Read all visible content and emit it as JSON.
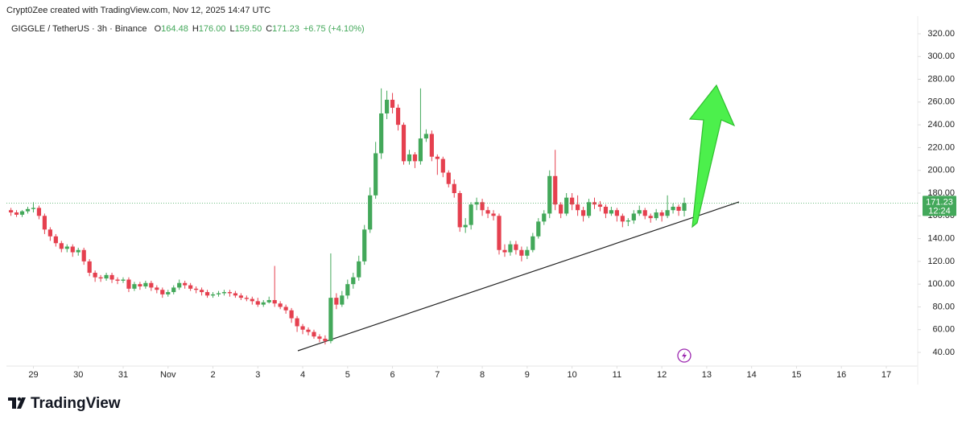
{
  "attribution": "Crypt0Zee created with TradingView.com, Nov 12, 2025 14:47 UTC",
  "branding": "TradingView",
  "chart_data": {
    "type": "candlestick",
    "title": "GIGGLE / TetherUS · 3h · Binance",
    "ohlc_legend": [
      {
        "key": "O",
        "value": "164.48"
      },
      {
        "key": "H",
        "value": "176.00"
      },
      {
        "key": "L",
        "value": "159.50"
      },
      {
        "key": "C",
        "value": "171.23"
      }
    ],
    "change": "+6.75 (+4.10%)",
    "countdown": "12:24",
    "up_color": "#43a85a",
    "down_color": "#e5404f",
    "grid": false,
    "x": [
      -0.5,
      -0.375,
      -0.25,
      -0.125,
      0,
      0.125,
      0.25,
      0.375,
      0.5,
      0.625,
      0.75,
      0.875,
      1,
      1.125,
      1.25,
      1.375,
      1.5,
      1.625,
      1.75,
      1.875,
      2,
      2.125,
      2.25,
      2.375,
      2.5,
      2.625,
      2.75,
      2.875,
      3,
      3.125,
      3.25,
      3.375,
      3.5,
      3.625,
      3.75,
      3.875,
      4,
      4.125,
      4.25,
      4.375,
      4.5,
      4.625,
      4.75,
      4.875,
      5,
      5.125,
      5.25,
      5.375,
      5.5,
      5.625,
      5.75,
      5.875,
      6,
      6.125,
      6.25,
      6.375,
      6.5,
      6.625,
      6.75,
      6.875,
      7,
      7.125,
      7.25,
      7.375,
      7.5,
      7.625,
      7.75,
      7.875,
      8,
      8.125,
      8.25,
      8.375,
      8.5,
      8.625,
      8.75,
      8.875,
      9,
      9.125,
      9.25,
      9.375,
      9.5,
      9.625,
      9.75,
      9.875,
      10,
      10.125,
      10.25,
      10.375,
      10.5,
      10.625,
      10.75,
      10.875,
      11,
      11.125,
      11.25,
      11.375,
      11.5,
      11.625,
      11.75,
      11.875,
      12,
      12.125,
      12.25,
      12.375,
      12.5,
      12.625,
      12.75,
      12.875,
      13,
      13.125,
      13.25,
      13.375,
      13.5,
      13.625,
      13.75,
      13.875,
      14,
      14.125,
      14.25,
      14.375,
      14.5
    ],
    "open": [
      165,
      163,
      161,
      164,
      166,
      167,
      160,
      148,
      142,
      136,
      131,
      133,
      128,
      130,
      120,
      110,
      106,
      105,
      108,
      104,
      103,
      104,
      96,
      100,
      98,
      101,
      97,
      95,
      91,
      93,
      97,
      101,
      99,
      96,
      95,
      93,
      90,
      91,
      92,
      93,
      92,
      90,
      88,
      87,
      85,
      82,
      84,
      86,
      83,
      80,
      77,
      70,
      63,
      60,
      58,
      54,
      52,
      50,
      88,
      82,
      90,
      100,
      106,
      120,
      148,
      178,
      215,
      250,
      262,
      255,
      240,
      208,
      214,
      208,
      228,
      232,
      212,
      210,
      198,
      188,
      180,
      150,
      152,
      170,
      172,
      165,
      162,
      160,
      130,
      128,
      135,
      130,
      125,
      130,
      142,
      155,
      162,
      195,
      170,
      162,
      176,
      170,
      165,
      160,
      172,
      170,
      168,
      162,
      165,
      160,
      155,
      156,
      162,
      165,
      160,
      158,
      163,
      160,
      165,
      168,
      164.48
    ],
    "high": [
      167,
      165,
      165,
      168,
      172,
      169,
      162,
      150,
      144,
      138,
      135,
      135,
      132,
      132,
      122,
      112,
      108,
      110,
      110,
      106,
      106,
      106,
      102,
      102,
      103,
      103,
      99,
      97,
      95,
      99,
      104,
      103,
      101,
      98,
      97,
      95,
      93,
      94,
      95,
      95,
      94,
      92,
      90,
      89,
      88,
      86,
      89,
      116,
      85,
      82,
      79,
      72,
      65,
      62,
      60,
      56,
      55,
      127,
      92,
      94,
      104,
      110,
      125,
      152,
      185,
      225,
      272,
      270,
      268,
      258,
      242,
      218,
      216,
      272,
      236,
      235,
      214,
      212,
      200,
      192,
      182,
      158,
      172,
      176,
      175,
      168,
      165,
      162,
      135,
      138,
      138,
      133,
      133,
      145,
      158,
      165,
      200,
      218,
      172,
      180,
      180,
      178,
      168,
      175,
      176,
      173,
      170,
      168,
      167,
      162,
      158,
      165,
      169,
      167,
      162,
      166,
      165,
      178,
      171,
      170,
      176
    ],
    "low": [
      160,
      159,
      159,
      162,
      163,
      157,
      144,
      138,
      133,
      128,
      128,
      124,
      125,
      117,
      107,
      102,
      102,
      103,
      101,
      100,
      101,
      93,
      94,
      95,
      96,
      94,
      92,
      88,
      89,
      91,
      95,
      96,
      94,
      92,
      90,
      88,
      88,
      89,
      90,
      89,
      88,
      86,
      85,
      82,
      80,
      80,
      83,
      80,
      78,
      74,
      66,
      58,
      56,
      55,
      52,
      49,
      47,
      48,
      78,
      80,
      87,
      96,
      103,
      117,
      145,
      175,
      210,
      245,
      250,
      235,
      205,
      205,
      202,
      205,
      225,
      208,
      196,
      194,
      185,
      176,
      146,
      145,
      148,
      165,
      160,
      158,
      156,
      126,
      124,
      125,
      126,
      120,
      122,
      128,
      140,
      152,
      158,
      165,
      158,
      160,
      165,
      160,
      155,
      158,
      166,
      164,
      158,
      160,
      155,
      150,
      151,
      153,
      160,
      157,
      154,
      156,
      155,
      158,
      162,
      160,
      159.5
    ],
    "close": [
      163,
      161,
      164,
      166,
      167,
      160,
      148,
      142,
      136,
      131,
      133,
      128,
      130,
      120,
      110,
      106,
      105,
      108,
      104,
      103,
      104,
      96,
      100,
      98,
      101,
      97,
      95,
      91,
      93,
      97,
      101,
      99,
      96,
      95,
      93,
      90,
      91,
      92,
      93,
      92,
      90,
      88,
      87,
      85,
      82,
      84,
      86,
      83,
      80,
      77,
      70,
      63,
      60,
      58,
      54,
      52,
      50,
      88,
      82,
      90,
      100,
      106,
      120,
      148,
      178,
      215,
      250,
      262,
      255,
      240,
      208,
      214,
      208,
      228,
      232,
      212,
      210,
      198,
      188,
      180,
      150,
      152,
      170,
      172,
      165,
      162,
      160,
      130,
      128,
      135,
      130,
      125,
      130,
      142,
      155,
      162,
      195,
      170,
      162,
      176,
      170,
      165,
      160,
      172,
      170,
      168,
      162,
      165,
      160,
      155,
      156,
      162,
      165,
      160,
      158,
      163,
      160,
      165,
      168,
      164.48,
      171.23
    ],
    "xlim": [
      -0.6,
      19.7
    ],
    "xticks": [
      {
        "value": 0,
        "label": "29"
      },
      {
        "value": 1,
        "label": "30"
      },
      {
        "value": 2,
        "label": "31"
      },
      {
        "value": 3,
        "label": "Nov"
      },
      {
        "value": 4,
        "label": "2"
      },
      {
        "value": 5,
        "label": "3"
      },
      {
        "value": 6,
        "label": "4"
      },
      {
        "value": 7,
        "label": "5"
      },
      {
        "value": 8,
        "label": "6"
      },
      {
        "value": 9,
        "label": "7"
      },
      {
        "value": 10,
        "label": "8"
      },
      {
        "value": 11,
        "label": "9"
      },
      {
        "value": 12,
        "label": "10"
      },
      {
        "value": 13,
        "label": "11"
      },
      {
        "value": 14,
        "label": "12"
      },
      {
        "value": 15,
        "label": "13"
      },
      {
        "value": 16,
        "label": "14"
      },
      {
        "value": 17,
        "label": "15"
      },
      {
        "value": 18,
        "label": "16"
      },
      {
        "value": 19,
        "label": "17"
      }
    ],
    "ylim": [
      28,
      332
    ],
    "yticks": [
      {
        "value": 40,
        "label": "40.00"
      },
      {
        "value": 60,
        "label": "60.00"
      },
      {
        "value": 80,
        "label": "80.00"
      },
      {
        "value": 100,
        "label": "100.00"
      },
      {
        "value": 120,
        "label": "120.00"
      },
      {
        "value": 140,
        "label": "140.00"
      },
      {
        "value": 160,
        "label": "160.00"
      },
      {
        "value": 180,
        "label": "180.00"
      },
      {
        "value": 200,
        "label": "200.00"
      },
      {
        "value": 220,
        "label": "220.00"
      },
      {
        "value": 240,
        "label": "240.00"
      },
      {
        "value": 260,
        "label": "260.00"
      },
      {
        "value": 280,
        "label": "280.00"
      },
      {
        "value": 300,
        "label": "300.00"
      },
      {
        "value": 320,
        "label": "320.00"
      }
    ]
  }
}
